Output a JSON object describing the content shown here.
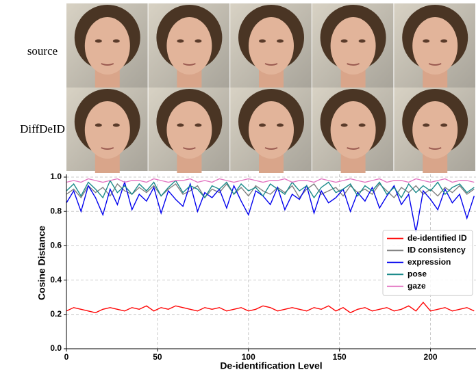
{
  "figure": {
    "row_labels": [
      "source",
      "DiffDeID"
    ]
  },
  "chart_data": {
    "type": "line",
    "xlabel": "De-identification Level",
    "ylabel": "Cosine Distance",
    "x": [
      0,
      4,
      8,
      12,
      16,
      20,
      24,
      28,
      32,
      36,
      40,
      44,
      48,
      52,
      56,
      60,
      64,
      68,
      72,
      76,
      80,
      84,
      88,
      92,
      96,
      100,
      104,
      108,
      112,
      116,
      120,
      124,
      128,
      132,
      136,
      140,
      144,
      148,
      152,
      156,
      160,
      164,
      168,
      172,
      176,
      180,
      184,
      188,
      192,
      196,
      200,
      204,
      208,
      212,
      216,
      220,
      224
    ],
    "xlim": [
      0,
      225
    ],
    "ylim": [
      0,
      1
    ],
    "xticks": [
      0,
      50,
      100,
      150,
      200
    ],
    "yticks": [
      {
        "value": 0,
        "label": "0.0"
      },
      {
        "value": 0.2,
        "label": "0.2"
      },
      {
        "value": 0.4,
        "label": "0.4"
      },
      {
        "value": 0.6,
        "label": "0.6"
      },
      {
        "value": 0.8,
        "label": "0.8"
      },
      {
        "value": 1,
        "label": "1.0"
      }
    ],
    "grid": true,
    "legend": "center right",
    "series": [
      {
        "name": "de-identified ID",
        "color": "#ff0000",
        "values": [
          0.22,
          0.24,
          0.23,
          0.22,
          0.21,
          0.23,
          0.24,
          0.23,
          0.22,
          0.24,
          0.23,
          0.25,
          0.22,
          0.24,
          0.23,
          0.25,
          0.24,
          0.23,
          0.22,
          0.24,
          0.23,
          0.24,
          0.22,
          0.23,
          0.24,
          0.22,
          0.23,
          0.25,
          0.24,
          0.22,
          0.23,
          0.24,
          0.23,
          0.22,
          0.24,
          0.23,
          0.25,
          0.22,
          0.24,
          0.21,
          0.23,
          0.24,
          0.22,
          0.23,
          0.24,
          0.22,
          0.23,
          0.25,
          0.22,
          0.27,
          0.22,
          0.23,
          0.24,
          0.22,
          0.23,
          0.24,
          0.22
        ]
      },
      {
        "name": "ID consistency",
        "color": "#808080",
        "values": [
          0.9,
          0.93,
          0.88,
          0.95,
          0.91,
          0.94,
          0.89,
          0.96,
          0.92,
          0.9,
          0.94,
          0.91,
          0.95,
          0.89,
          0.93,
          0.96,
          0.9,
          0.92,
          0.95,
          0.88,
          0.93,
          0.91,
          0.96,
          0.9,
          0.94,
          0.89,
          0.95,
          0.92,
          0.9,
          0.94,
          0.91,
          0.95,
          0.88,
          0.93,
          0.96,
          0.9,
          0.92,
          0.94,
          0.89,
          0.95,
          0.91,
          0.93,
          0.9,
          0.96,
          0.92,
          0.88,
          0.94,
          0.91,
          0.95,
          0.9,
          0.93,
          0.89,
          0.94,
          0.91,
          0.95,
          0.9,
          0.93
        ]
      },
      {
        "name": "expression",
        "color": "#0000ee",
        "values": [
          0.85,
          0.92,
          0.8,
          0.95,
          0.88,
          0.78,
          0.93,
          0.84,
          0.97,
          0.81,
          0.9,
          0.86,
          0.94,
          0.79,
          0.92,
          0.87,
          0.83,
          0.96,
          0.8,
          0.91,
          0.88,
          0.93,
          0.82,
          0.95,
          0.86,
          0.78,
          0.92,
          0.89,
          0.84,
          0.94,
          0.81,
          0.9,
          0.87,
          0.95,
          0.79,
          0.92,
          0.85,
          0.88,
          0.93,
          0.8,
          0.91,
          0.86,
          0.94,
          0.82,
          0.89,
          0.95,
          0.84,
          0.9,
          0.68,
          0.92,
          0.87,
          0.81,
          0.93,
          0.85,
          0.9,
          0.76,
          0.89
        ]
      },
      {
        "name": "pose",
        "color": "#1a8a8a",
        "values": [
          0.92,
          0.96,
          0.89,
          0.97,
          0.93,
          0.88,
          0.98,
          0.91,
          0.95,
          0.9,
          0.96,
          0.92,
          0.97,
          0.89,
          0.94,
          0.98,
          0.91,
          0.95,
          0.93,
          0.88,
          0.95,
          0.93,
          0.97,
          0.9,
          0.96,
          0.92,
          0.94,
          0.89,
          0.96,
          0.93,
          0.9,
          0.97,
          0.92,
          0.95,
          0.88,
          0.94,
          0.97,
          0.91,
          0.93,
          0.96,
          0.89,
          0.95,
          0.92,
          0.97,
          0.9,
          0.94,
          0.88,
          0.96,
          0.91,
          0.95,
          0.92,
          0.97,
          0.9,
          0.94,
          0.96,
          0.91,
          0.94
        ]
      },
      {
        "name": "gaze",
        "color": "#e377c2",
        "values": [
          0.97,
          0.98,
          0.97,
          0.99,
          0.98,
          0.97,
          0.98,
          0.99,
          0.97,
          0.98,
          0.98,
          0.97,
          0.99,
          0.98,
          0.97,
          0.98,
          0.98,
          0.99,
          0.97,
          0.98,
          0.97,
          0.99,
          0.98,
          0.97,
          0.98,
          0.99,
          0.98,
          0.97,
          0.98,
          0.98,
          0.99,
          0.97,
          0.98,
          0.98,
          0.97,
          0.99,
          0.98,
          0.97,
          0.98,
          0.99,
          0.98,
          0.97,
          0.98,
          0.99,
          0.97,
          0.98,
          0.98,
          0.97,
          0.99,
          0.98,
          0.97,
          0.98,
          0.99,
          0.97,
          0.98,
          0.98,
          0.97
        ]
      }
    ]
  }
}
